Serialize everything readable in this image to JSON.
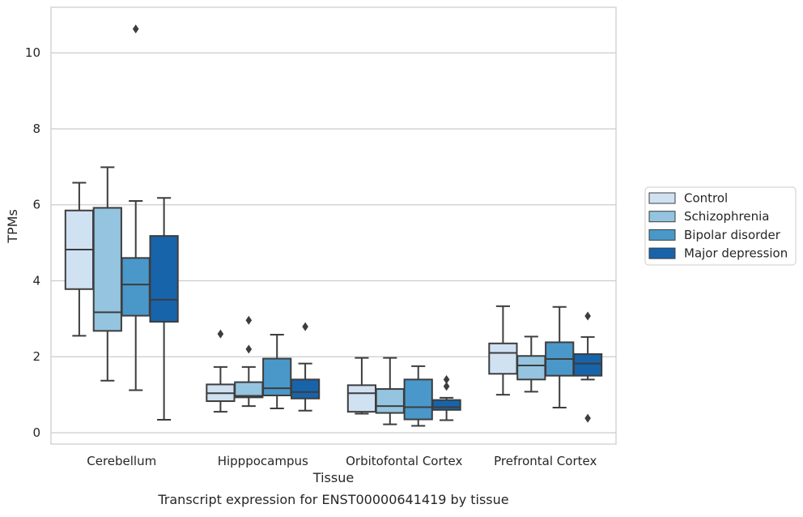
{
  "chart_data": {
    "type": "box",
    "title": "",
    "caption": "Transcript expression for ENST00000641419 by tissue",
    "xlabel": "Tissue",
    "ylabel": "TPMs",
    "ylim": [
      -0.3,
      11.2
    ],
    "yticks": [
      0,
      2,
      4,
      6,
      8,
      10
    ],
    "grid": true,
    "legend_position": "right",
    "categories": [
      "Cerebellum",
      "Hipppocampus",
      "Orbitofontal Cortex",
      "Prefrontal Cortex"
    ],
    "series": [
      {
        "name": "Control",
        "color": "#d0e1f2",
        "boxes": [
          {
            "whislo": 2.55,
            "q1": 3.78,
            "med": 4.82,
            "q3": 5.85,
            "whishi": 6.58,
            "fliers": []
          },
          {
            "whislo": 0.55,
            "q1": 0.83,
            "med": 1.04,
            "q3": 1.27,
            "whishi": 1.73,
            "fliers": [
              2.6
            ]
          },
          {
            "whislo": 0.5,
            "q1": 0.55,
            "med": 1.04,
            "q3": 1.25,
            "whishi": 1.97,
            "fliers": []
          },
          {
            "whislo": 1.0,
            "q1": 1.55,
            "med": 2.1,
            "q3": 2.35,
            "whishi": 3.33,
            "fliers": []
          }
        ]
      },
      {
        "name": "Schizophrenia",
        "color": "#94c4df",
        "boxes": [
          {
            "whislo": 1.37,
            "q1": 2.68,
            "med": 3.17,
            "q3": 5.92,
            "whishi": 6.99,
            "fliers": []
          },
          {
            "whislo": 0.7,
            "q1": 0.93,
            "med": 0.97,
            "q3": 1.33,
            "whishi": 1.73,
            "fliers": [
              2.2,
              2.96
            ]
          },
          {
            "whislo": 0.22,
            "q1": 0.52,
            "med": 0.7,
            "q3": 1.15,
            "whishi": 1.97,
            "fliers": []
          },
          {
            "whislo": 1.08,
            "q1": 1.4,
            "med": 1.77,
            "q3": 2.02,
            "whishi": 2.53,
            "fliers": []
          }
        ]
      },
      {
        "name": "Bipolar disorder",
        "color": "#4a98c9",
        "boxes": [
          {
            "whislo": 1.12,
            "q1": 3.08,
            "med": 3.9,
            "q3": 4.6,
            "whishi": 6.1,
            "fliers": [
              10.63
            ]
          },
          {
            "whislo": 0.64,
            "q1": 0.98,
            "med": 1.17,
            "q3": 1.95,
            "whishi": 2.58,
            "fliers": []
          },
          {
            "whislo": 0.18,
            "q1": 0.35,
            "med": 0.67,
            "q3": 1.4,
            "whishi": 1.75,
            "fliers": []
          },
          {
            "whislo": 0.66,
            "q1": 1.5,
            "med": 1.94,
            "q3": 2.38,
            "whishi": 3.31,
            "fliers": []
          }
        ]
      },
      {
        "name": "Major depression",
        "color": "#1764ab",
        "boxes": [
          {
            "whislo": 0.34,
            "q1": 2.92,
            "med": 3.5,
            "q3": 5.18,
            "whishi": 6.18,
            "fliers": []
          },
          {
            "whislo": 0.58,
            "q1": 0.9,
            "med": 1.07,
            "q3": 1.4,
            "whishi": 1.82,
            "fliers": [
              2.79
            ]
          },
          {
            "whislo": 0.33,
            "q1": 0.6,
            "med": 0.67,
            "q3": 0.86,
            "whishi": 0.92,
            "fliers": [
              1.22,
              1.4
            ]
          },
          {
            "whislo": 1.4,
            "q1": 1.5,
            "med": 1.82,
            "q3": 2.07,
            "whishi": 2.52,
            "fliers": [
              0.38,
              3.07
            ]
          }
        ]
      }
    ]
  }
}
